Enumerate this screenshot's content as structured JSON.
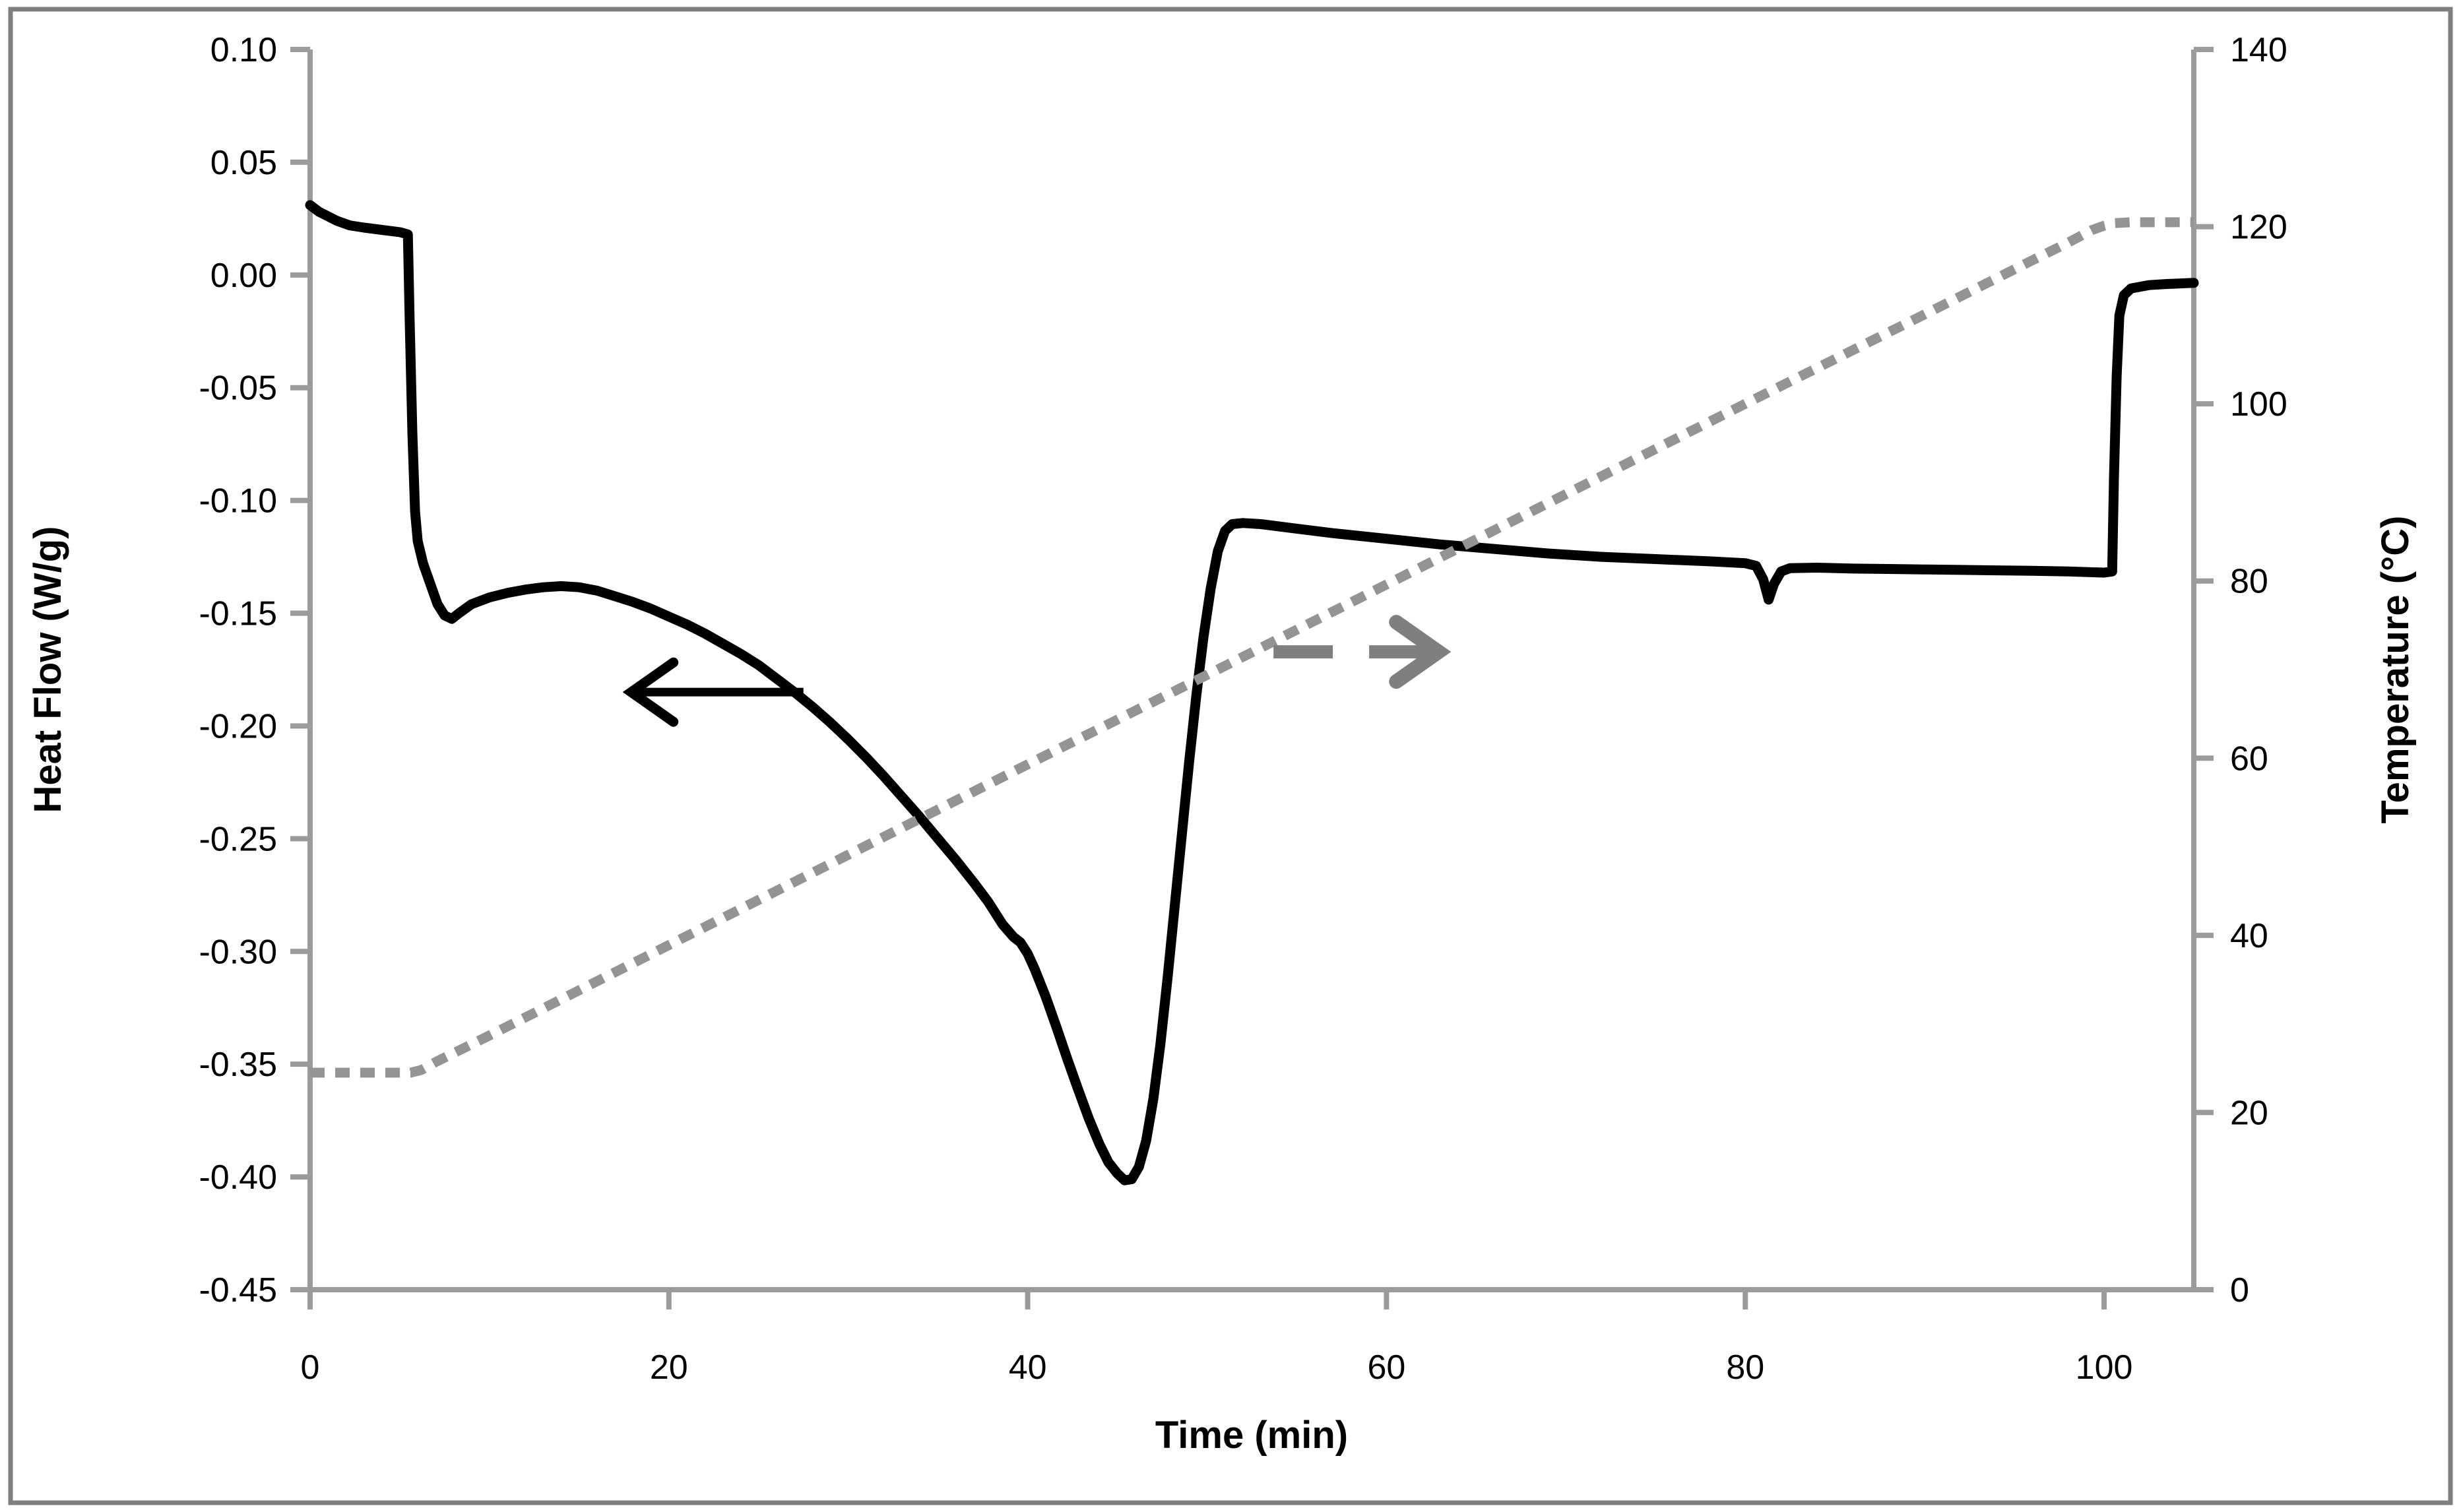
{
  "figure": {
    "background_color": "#ffffff",
    "border_color": "#7f7f7f",
    "axis_color": "#9b9b9b"
  },
  "chart_data": {
    "type": "line",
    "title": "",
    "xlabel": "Time (min)",
    "ylabel_left": "Heat Flow (W/g)",
    "ylabel_right": "Temperature (°C)",
    "x_range": [
      0,
      105
    ],
    "y_left_range": [
      -0.45,
      0.1
    ],
    "y_right_range": [
      0,
      140
    ],
    "x_tick_labels": [
      "0",
      "20",
      "40",
      "60",
      "80",
      "100"
    ],
    "x_tick_values": [
      0,
      20,
      40,
      60,
      80,
      100
    ],
    "y_left_tick_labels": [
      "0.10",
      "0.05",
      "0.00",
      "-0.05",
      "-0.10",
      "-0.15",
      "-0.20",
      "-0.25",
      "-0.30",
      "-0.35",
      "-0.40",
      "-0.45"
    ],
    "y_left_tick_values": [
      0.1,
      0.05,
      0.0,
      -0.05,
      -0.1,
      -0.15,
      -0.2,
      -0.25,
      -0.3,
      -0.35,
      -0.4,
      -0.45
    ],
    "y_right_tick_labels": [
      "140",
      "120",
      "100",
      "80",
      "60",
      "40",
      "20",
      "0"
    ],
    "y_right_tick_values": [
      140,
      120,
      100,
      80,
      60,
      40,
      20,
      0
    ],
    "grid": false,
    "legend": "none",
    "series": [
      {
        "name": "Heat Flow",
        "slug": "heat-flow-curve",
        "axis": "left",
        "color": "#000000",
        "style": "solid",
        "points": [
          [
            0,
            0.031
          ],
          [
            0.5,
            0.028
          ],
          [
            1,
            0.026
          ],
          [
            1.5,
            0.024
          ],
          [
            2.2,
            0.022
          ],
          [
            3,
            0.021
          ],
          [
            4,
            0.02
          ],
          [
            5,
            0.019
          ],
          [
            5.45,
            0.018
          ],
          [
            5.55,
            -0.02
          ],
          [
            5.7,
            -0.07
          ],
          [
            5.85,
            -0.105
          ],
          [
            6.0,
            -0.118
          ],
          [
            6.3,
            -0.128
          ],
          [
            6.7,
            -0.137
          ],
          [
            7.1,
            -0.146
          ],
          [
            7.5,
            -0.151
          ],
          [
            7.9,
            -0.1525
          ],
          [
            8.3,
            -0.15
          ],
          [
            9,
            -0.146
          ],
          [
            10,
            -0.143
          ],
          [
            11,
            -0.141
          ],
          [
            12,
            -0.1395
          ],
          [
            13,
            -0.1385
          ],
          [
            14,
            -0.138
          ],
          [
            15,
            -0.1385
          ],
          [
            16,
            -0.14
          ],
          [
            17,
            -0.1425
          ],
          [
            18,
            -0.145
          ],
          [
            19,
            -0.148
          ],
          [
            20,
            -0.1515
          ],
          [
            21,
            -0.155
          ],
          [
            22,
            -0.159
          ],
          [
            23,
            -0.1635
          ],
          [
            24,
            -0.168
          ],
          [
            25,
            -0.173
          ],
          [
            26,
            -0.179
          ],
          [
            27,
            -0.185
          ],
          [
            28,
            -0.1915
          ],
          [
            29,
            -0.1985
          ],
          [
            30,
            -0.206
          ],
          [
            31,
            -0.214
          ],
          [
            32,
            -0.2225
          ],
          [
            33,
            -0.2315
          ],
          [
            34,
            -0.2405
          ],
          [
            35,
            -0.25
          ],
          [
            36,
            -0.2595
          ],
          [
            37,
            -0.2695
          ],
          [
            37.8,
            -0.278
          ],
          [
            38.6,
            -0.288
          ],
          [
            39.2,
            -0.2935
          ],
          [
            39.6,
            -0.296
          ],
          [
            40,
            -0.301
          ],
          [
            40.4,
            -0.308
          ],
          [
            41,
            -0.32
          ],
          [
            41.6,
            -0.3335
          ],
          [
            42.2,
            -0.3475
          ],
          [
            42.8,
            -0.361
          ],
          [
            43.4,
            -0.374
          ],
          [
            44,
            -0.3855
          ],
          [
            44.5,
            -0.3935
          ],
          [
            45,
            -0.3985
          ],
          [
            45.4,
            -0.4015
          ],
          [
            45.8,
            -0.401
          ],
          [
            46.2,
            -0.3955
          ],
          [
            46.6,
            -0.384
          ],
          [
            47,
            -0.3655
          ],
          [
            47.4,
            -0.341
          ],
          [
            47.8,
            -0.3115
          ],
          [
            48.2,
            -0.2795
          ],
          [
            48.6,
            -0.2475
          ],
          [
            49,
            -0.216
          ],
          [
            49.4,
            -0.1865
          ],
          [
            49.8,
            -0.1605
          ],
          [
            50.2,
            -0.139
          ],
          [
            50.6,
            -0.1225
          ],
          [
            51,
            -0.1135
          ],
          [
            51.4,
            -0.1105
          ],
          [
            52,
            -0.11
          ],
          [
            53,
            -0.1105
          ],
          [
            55,
            -0.1125
          ],
          [
            57,
            -0.1145
          ],
          [
            60,
            -0.117
          ],
          [
            63,
            -0.1195
          ],
          [
            66,
            -0.1215
          ],
          [
            69,
            -0.1235
          ],
          [
            72,
            -0.125
          ],
          [
            75,
            -0.126
          ],
          [
            78,
            -0.127
          ],
          [
            80,
            -0.1278
          ],
          [
            80.6,
            -0.129
          ],
          [
            81.0,
            -0.135
          ],
          [
            81.3,
            -0.144
          ],
          [
            81.6,
            -0.137
          ],
          [
            82,
            -0.1315
          ],
          [
            82.5,
            -0.13
          ],
          [
            84,
            -0.1298
          ],
          [
            86,
            -0.1302
          ],
          [
            88,
            -0.1304
          ],
          [
            90,
            -0.1306
          ],
          [
            92,
            -0.1308
          ],
          [
            94,
            -0.131
          ],
          [
            96,
            -0.1312
          ],
          [
            98,
            -0.1315
          ],
          [
            100,
            -0.132
          ],
          [
            100.45,
            -0.1315
          ],
          [
            100.55,
            -0.09
          ],
          [
            100.7,
            -0.045
          ],
          [
            100.85,
            -0.018
          ],
          [
            101.1,
            -0.009
          ],
          [
            101.5,
            -0.006
          ],
          [
            102.5,
            -0.0045
          ],
          [
            103.5,
            -0.004
          ],
          [
            105,
            -0.0035
          ]
        ]
      },
      {
        "name": "Temperature",
        "slug": "temperature-curve",
        "axis": "right",
        "color": "#949494",
        "style": "dashed",
        "points": [
          [
            0,
            24.5
          ],
          [
            5.6,
            24.5
          ],
          [
            6.2,
            24.8
          ],
          [
            7,
            25.7
          ],
          [
            10,
            28.7
          ],
          [
            20,
            38.9
          ],
          [
            30,
            49.1
          ],
          [
            40,
            59.3
          ],
          [
            50,
            69.4
          ],
          [
            60,
            79.6
          ],
          [
            70,
            89.8
          ],
          [
            80,
            100.0
          ],
          [
            90,
            110.1
          ],
          [
            96,
            116.2
          ],
          [
            98,
            118.2
          ],
          [
            99.3,
            119.6
          ],
          [
            100,
            120.1
          ],
          [
            100.6,
            120.4
          ],
          [
            101.5,
            120.5
          ],
          [
            105,
            120.5
          ]
        ]
      }
    ],
    "annotations": [
      {
        "type": "arrow",
        "slug": "heat-flow-axis-arrow",
        "meaning": "points left toward heat-flow axis",
        "color": "#000000",
        "style": "solid",
        "y_axis": "left",
        "y": -0.185,
        "x_from": 27.5,
        "x_to": 17.9
      },
      {
        "type": "arrow",
        "slug": "temperature-axis-arrow",
        "meaning": "points right toward temperature axis",
        "color": "#7f7f7f",
        "style": "dashed",
        "y_axis": "right",
        "y": 72,
        "x_from": 53.7,
        "x_to": 62.9
      }
    ]
  }
}
